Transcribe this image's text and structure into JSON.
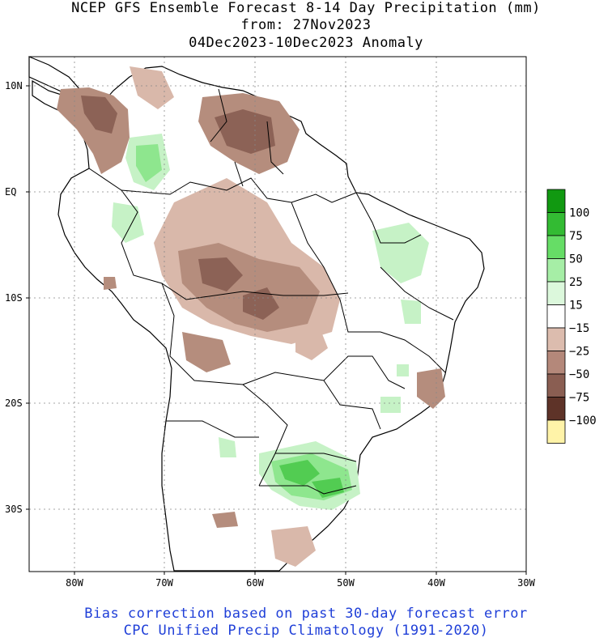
{
  "title": {
    "line1": "NCEP GFS Ensemble Forecast 8-14 Day Precipitation (mm)",
    "line2": "from: 27Nov2023",
    "line3": "04Dec2023-10Dec2023 Anomaly"
  },
  "map": {
    "lat_labels": [
      "10N",
      "EQ",
      "10S",
      "20S",
      "30S"
    ],
    "lon_labels": [
      "80W",
      "70W",
      "60W",
      "50W",
      "40W",
      "30W"
    ],
    "colors": {
      "dry_light": "#d9b8aa",
      "dry_mid": "#b58d7d",
      "dry_dark": "#8c6256",
      "wet_light": "#c6f2c6",
      "wet_mid": "#8ee68e",
      "wet_strong": "#52cc52",
      "ocean": "#ffffff",
      "boundary": "#000000"
    }
  },
  "legend": {
    "labels": [
      "100",
      "75",
      "50",
      "25",
      "15",
      "−15",
      "−25",
      "−50",
      "−75",
      "−100"
    ],
    "colors": [
      "#119911",
      "#33bb33",
      "#66dd66",
      "#a6eea6",
      "#dcf8dc",
      "#ffffff",
      "#dcbcae",
      "#b4887a",
      "#8a5e52",
      "#5e3328",
      "#fff3a8"
    ]
  },
  "footer": {
    "line1": "Bias correction based on past 30-day forecast error",
    "line2": "CPC Unified Precip Climatology (1991-2020)"
  }
}
